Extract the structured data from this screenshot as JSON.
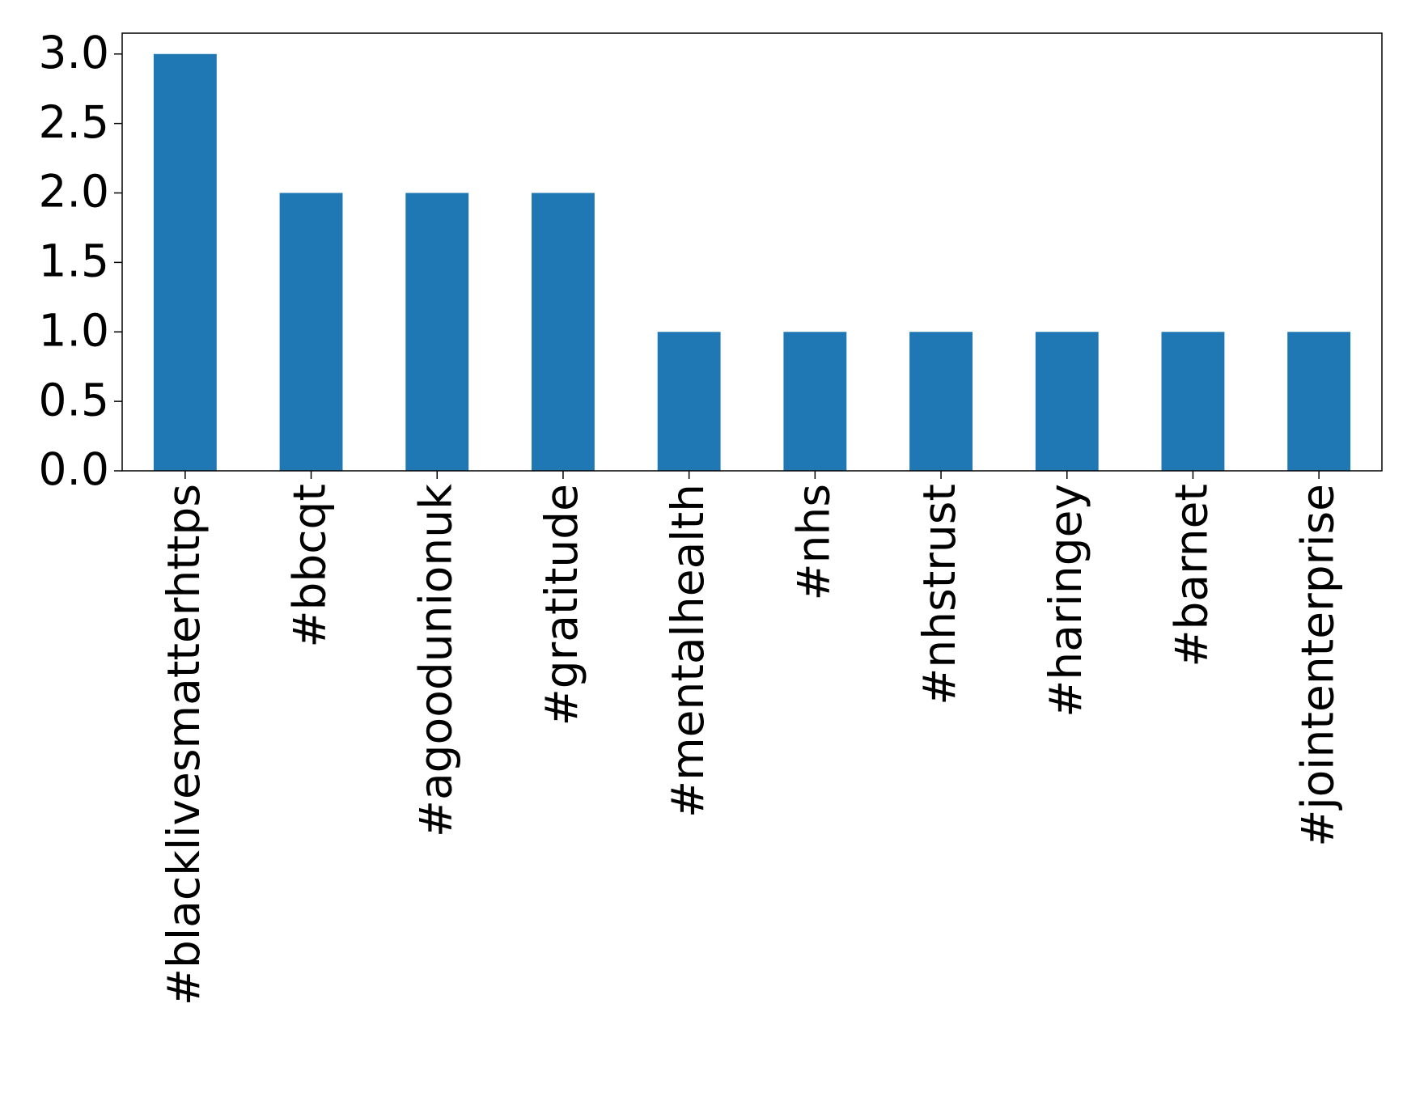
{
  "chart_data": {
    "type": "bar",
    "categories": [
      "#blacklivesmatterhttps",
      "#bbcqt",
      "#agoodunionuk",
      "#gratitude",
      "#mentalhealth",
      "#nhs",
      "#nhstrust",
      "#haringey",
      "#barnet",
      "#jointenterprise"
    ],
    "values": [
      3,
      2,
      2,
      2,
      1,
      1,
      1,
      1,
      1,
      1
    ],
    "color": "#1f77b4",
    "ylim": [
      0,
      3.15
    ],
    "yticks": [
      {
        "value": 0,
        "label": "0.0"
      },
      0.5,
      {
        "value": 1,
        "label": "1.0"
      },
      1.5,
      {
        "value": 2,
        "label": "2.0"
      },
      2.5,
      {
        "value": 3,
        "label": "3.0"
      }
    ]
  }
}
